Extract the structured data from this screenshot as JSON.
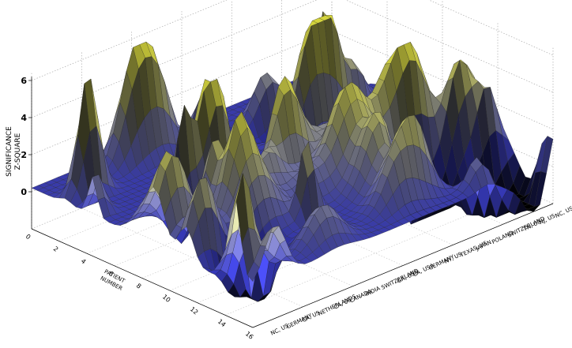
{
  "chart_data": {
    "type": "surface",
    "zlabel_lines": [
      "SIGNIFICANCE",
      "Z-SQUARE"
    ],
    "xlabel_lines": [
      "PATIENT",
      "NUMBER"
    ],
    "zlim": [
      -2,
      6
    ],
    "zticks": [
      "0",
      "2",
      "4",
      "6"
    ],
    "grid": true,
    "x_categories": [
      "0",
      "2",
      "4",
      "6",
      "8",
      "10",
      "12",
      "14",
      "16"
    ],
    "y_categories": [
      "NC, US",
      "GERMANY",
      "CA, US",
      "NETHERLANDS",
      "CA, US",
      "CANADA",
      "INDIA",
      "SWITZERLAND",
      "GA, USA",
      "CA, USA",
      "GERMANY",
      "NY, US",
      "TEXAS, US",
      "JAPAN",
      "POLAND",
      "SWITZERLAND",
      "TN, US",
      "NJ, US",
      "NC, US"
    ],
    "colormap": [
      "#000000",
      "#3b3ec8",
      "#8a8cb8",
      "#d4d47a",
      "#fafa48"
    ]
  }
}
